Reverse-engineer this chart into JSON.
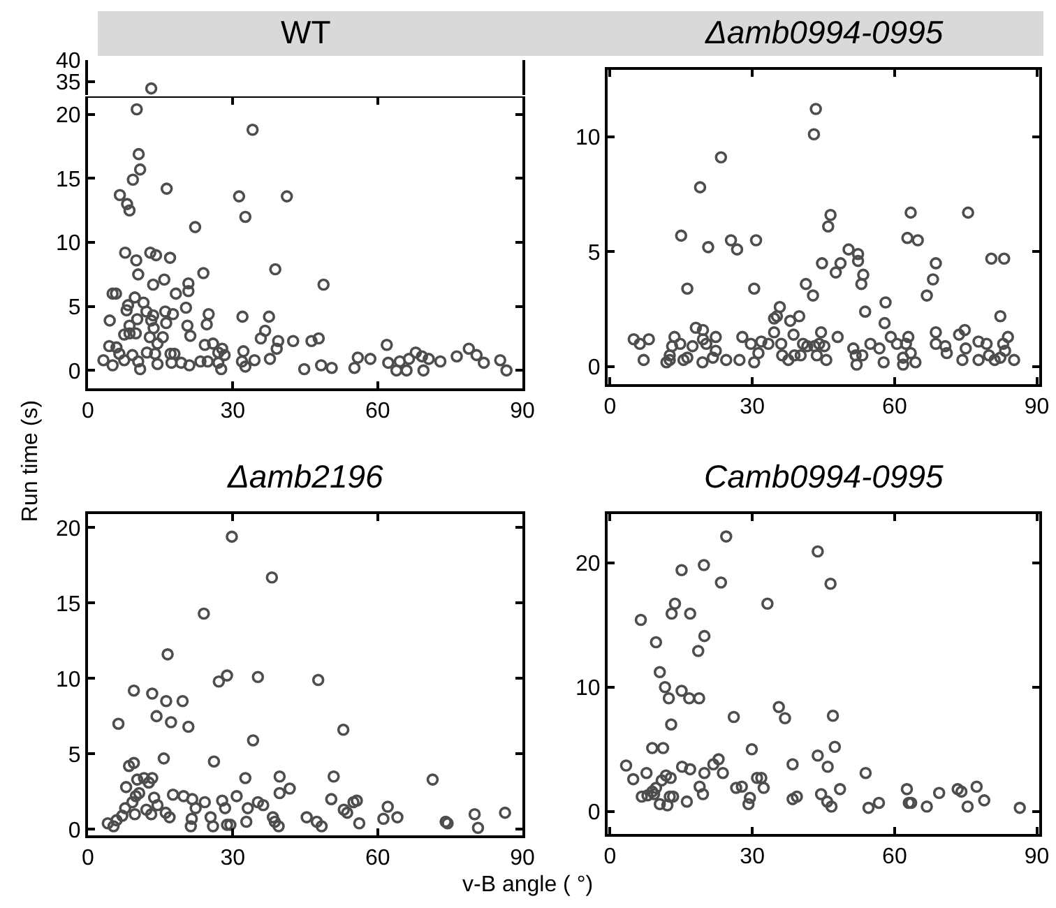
{
  "chart_data": [
    {
      "type": "scatter",
      "title": "WT",
      "marker": "circle",
      "tick_labels": "y",
      "xlim": [
        0,
        90
      ],
      "ylim": [
        32,
        40
      ],
      "yticks": [
        35,
        40
      ],
      "series": [
        {
          "color": "#4d4d4d",
          "x": [
            13.1
          ],
          "values": [
            33.5
          ]
        }
      ]
    },
    {
      "type": "scatter",
      "ylabel": "Run time (s)",
      "marker": "circle",
      "xlim": [
        0,
        90
      ],
      "xticks": [
        0,
        30,
        60,
        90
      ],
      "ylim": [
        -1.4,
        21.3
      ],
      "yticks": [
        0,
        5,
        10,
        15,
        20
      ],
      "series": [
        {
          "color": "#4d4d4d",
          "x": [
            10.1,
            10.5,
            10.8,
            9.3,
            6.6,
            8.1,
            8.6,
            16.3,
            31.3,
            32.6,
            34.1,
            41.2,
            22.2,
            7.7,
            10.0,
            12.9,
            14.1,
            17.0,
            10.4,
            13.5,
            15.8,
            18.2,
            20.8,
            20.8,
            23.9,
            38.8,
            48.8,
            5.1,
            5.8,
            4.5,
            8.3,
            8.0,
            9.7,
            11.5,
            20.3,
            13.5,
            16.0,
            17.6,
            16.2,
            25.0,
            24.6,
            20.6,
            21.2,
            32.0,
            37.5,
            36.7,
            35.8,
            39.4,
            42.5,
            46.3,
            47.8,
            24.2,
            25.9,
            27.8,
            28.3,
            27.0,
            24.8,
            27.0,
            27.6,
            32.2,
            31.9,
            32.6,
            34.5,
            37.7,
            39.1,
            44.8,
            48.3,
            50.5,
            55.2,
            55.9,
            58.5,
            61.9,
            62.2,
            63.9,
            64.6,
            66.0,
            66.5,
            67.9,
            69.5,
            69.2,
            70.6,
            73.0,
            76.4,
            78.9,
            80.5,
            82.0,
            85.4,
            86.7,
            3.2,
            4.4,
            5.9,
            6.5,
            5.1,
            7.5,
            8.6,
            9.9,
            8.6,
            10.2,
            7.5,
            9.2,
            10.4,
            10.8,
            12.2,
            12.8,
            13.6,
            14.4,
            13.9,
            14.4,
            15.5,
            17.1,
            17.9,
            17.3,
            19.3,
            21.0,
            23.3,
            13.1,
            12.1
          ],
          "values": [
            20.4,
            16.9,
            15.7,
            14.9,
            13.7,
            13.0,
            12.5,
            14.2,
            13.6,
            12.0,
            18.8,
            13.6,
            11.2,
            9.2,
            8.6,
            9.2,
            9.0,
            8.8,
            7.5,
            6.7,
            7.1,
            6.0,
            6.8,
            6.2,
            7.6,
            7.9,
            6.7,
            6.0,
            6.0,
            3.9,
            5.1,
            4.7,
            5.7,
            5.3,
            4.9,
            4.3,
            4.6,
            4.4,
            3.7,
            4.4,
            3.6,
            3.5,
            2.7,
            4.2,
            4.2,
            3.1,
            2.5,
            2.3,
            2.3,
            2.3,
            2.5,
            2.0,
            2.1,
            1.7,
            1.2,
            1.4,
            0.7,
            0.6,
            0.1,
            1.5,
            0.7,
            0.3,
            0.8,
            0.9,
            1.7,
            0.1,
            0.4,
            0.2,
            0.2,
            1.0,
            0.9,
            2.0,
            0.6,
            0,
            0.7,
            0,
            0.9,
            1.4,
            0,
            1.1,
            0.9,
            0.7,
            1.1,
            1.7,
            1.2,
            0.6,
            0.8,
            0,
            0.8,
            1.9,
            1.8,
            1.3,
            0.4,
            2.8,
            2.9,
            2.9,
            3.5,
            4.0,
            0.8,
            1.2,
            0.7,
            0.1,
            1.4,
            2.6,
            3.3,
            2.1,
            1.3,
            0.5,
            2.6,
            1.3,
            1.3,
            0.6,
            0.6,
            0.4,
            0.7,
            3.9,
            4.6
          ]
        }
      ]
    },
    {
      "type": "scatter",
      "title": "Δamb0994-0995",
      "marker": "circle",
      "xlim": [
        -0.5,
        90.5
      ],
      "xticks": [
        0,
        30,
        60,
        90
      ],
      "ylim": [
        -0.75,
        12.9
      ],
      "yticks": [
        0,
        5,
        10
      ],
      "series": [
        {
          "color": "#4d4d4d",
          "x": [
            5.0,
            6.3,
            7.1,
            8.2,
            11.9,
            12.6,
            13.1,
            13.6,
            14.8,
            12.6,
            15.0,
            16.3,
            15.5,
            16.3,
            17.4,
            18.1,
            19.0,
            19.6,
            19.6,
            19.5,
            20.7,
            20.3,
            21.7,
            22.3,
            22.3,
            23.4,
            24.5,
            25.5,
            26.8,
            27.3,
            27.9,
            29.7,
            30.4,
            30.8,
            30.4,
            31.3,
            31.9,
            33.4,
            34.6,
            34.6,
            35.2,
            35.8,
            36.1,
            36.3,
            37.6,
            38.0,
            38.7,
            38.9,
            39.9,
            40.2,
            41.3,
            40.7,
            41.6,
            42.8,
            43.0,
            43.4,
            43.1,
            43.6,
            44.1,
            44.5,
            44.7,
            45.2,
            45.6,
            46.0,
            46.5,
            47.6,
            48.0,
            48.6,
            50.3,
            51.3,
            52.0,
            51.8,
            52.3,
            52.3,
            53.4,
            53.0,
            53.8,
            53.2,
            54.9,
            56.8,
            57.7,
            57.9,
            58.1,
            59.2,
            60.5,
            61.8,
            61.8,
            62.4,
            62.9,
            62.7,
            63.4,
            63.4,
            64.4,
            64.9,
            66.8,
            68.1,
            68.7,
            68.7,
            68.7,
            70.7,
            71.0,
            73.6,
            74.8,
            74.3,
            75.0,
            75.5,
            77.7,
            77.7,
            79.4,
            79.9,
            80.4,
            81.1,
            82.3,
            83.1,
            82.3,
            82.9,
            83.3,
            83.9,
            85.2
          ],
          "values": [
            1.2,
            1.0,
            0.3,
            1.2,
            0.2,
            0.5,
            0.9,
            1.3,
            1.0,
            0.3,
            5.7,
            3.4,
            0.3,
            0.4,
            0.9,
            1.7,
            7.8,
            1.6,
            1.2,
            0.2,
            5.2,
            1.0,
            0.4,
            0.7,
            1.3,
            9.1,
            0.3,
            5.5,
            5.1,
            0.3,
            1.3,
            1.0,
            3.4,
            5.5,
            0.2,
            0.6,
            1.1,
            1.0,
            1.5,
            2.1,
            2.2,
            2.6,
            1.0,
            0.5,
            0.3,
            2.0,
            1.4,
            0.5,
            2.2,
            0.5,
            3.6,
            1.0,
            0.9,
            3.1,
            10.1,
            11.2,
            0.9,
            0.5,
            1.0,
            1.5,
            4.5,
            0.9,
            0.3,
            6.1,
            6.6,
            4.1,
            1.3,
            4.5,
            5.1,
            0.8,
            0.1,
            0.5,
            4.9,
            4.6,
            4.0,
            3.6,
            2.4,
            0.5,
            1.0,
            0.8,
            0.2,
            1.9,
            2.8,
            1.3,
            1.0,
            0.4,
            0.1,
            1.0,
            1.3,
            5.6,
            6.7,
            0.6,
            0.2,
            5.5,
            3.1,
            3.8,
            4.5,
            1.5,
            1.0,
            0.9,
            0.6,
            1.4,
            1.6,
            0.3,
            0.8,
            6.7,
            1.1,
            0.3,
            1.0,
            0.5,
            4.7,
            0.3,
            0.4,
            4.7,
            2.2,
            1.0,
            0.7,
            1.3,
            0.3
          ]
        }
      ]
    },
    {
      "type": "scatter",
      "title": "Δamb2196",
      "xlabel": "v-B angle ( °)",
      "marker": "circle",
      "xlim": [
        0,
        90
      ],
      "xticks": [
        0,
        30,
        60,
        90
      ],
      "ylim": [
        -0.4,
        20.9
      ],
      "yticks": [
        0,
        5,
        10,
        15,
        20
      ],
      "series": [
        {
          "color": "#4d4d4d",
          "x": [
            4.1,
            5.3,
            5.9,
            6.3,
            7.1,
            7.7,
            7.9,
            8.5,
            9.5,
            9.5,
            9.2,
            9.7,
            9.9,
            10.2,
            10.6,
            11.6,
            12.1,
            12.6,
            13.1,
            13.3,
            13.3,
            13.7,
            14.2,
            14.4,
            15.7,
            16.1,
            16.2,
            16.5,
            16.9,
            17.2,
            17.6,
            19.6,
            19.8,
            20.8,
            21.3,
            21.5,
            21.6,
            22.3,
            24.0,
            24.2,
            25.4,
            25.9,
            26.1,
            27.1,
            27.8,
            28.4,
            28.8,
            28.8,
            29.5,
            29.8,
            30.8,
            32.8,
            32.6,
            33.1,
            34.2,
            35.2,
            35.2,
            36.3,
            38.1,
            38.3,
            38.7,
            39.5,
            39.7,
            39.7,
            41.8,
            45.3,
            47.4,
            47.7,
            48.4,
            50.4,
            50.9,
            52.9,
            53.0,
            53.7,
            55.0,
            55.7,
            56.2,
            61.2,
            62.1,
            64.1,
            71.4,
            74.1,
            74.5,
            80.1,
            80.8,
            86.4
          ],
          "values": [
            0.4,
            0.2,
            0.6,
            7.0,
            0.9,
            1.4,
            2.8,
            4.2,
            4.4,
            9.2,
            1.8,
            1.0,
            2.2,
            3.3,
            2.4,
            3.4,
            1.3,
            3.1,
            1.0,
            9.0,
            3.4,
            2.1,
            7.5,
            1.6,
            4.7,
            1.1,
            8.5,
            11.6,
            0.8,
            7.1,
            2.3,
            8.5,
            2.2,
            6.8,
            0.2,
            0.7,
            2.0,
            1.4,
            14.3,
            1.8,
            0.8,
            0.2,
            4.5,
            9.8,
            1.9,
            1.4,
            10.2,
            0.3,
            0.3,
            19.4,
            2.2,
            0.5,
            3.4,
            1.4,
            5.9,
            10.1,
            1.8,
            1.6,
            16.7,
            0.8,
            0.5,
            0.2,
            2.4,
            3.5,
            2.7,
            0.8,
            0.5,
            9.9,
            0.2,
            2.0,
            3.5,
            6.6,
            1.3,
            1.1,
            1.8,
            1.9,
            0.4,
            0.7,
            1.5,
            0.8,
            3.3,
            0.5,
            0.4,
            1.0,
            0.1,
            1.1
          ]
        }
      ]
    },
    {
      "type": "scatter",
      "title": "Camb0994-0995",
      "marker": "circle",
      "xlim": [
        -0.5,
        90.5
      ],
      "xticks": [
        0,
        30,
        60,
        90
      ],
      "ylim": [
        -1.8,
        23.9
      ],
      "yticks": [
        0,
        10,
        20
      ],
      "series": [
        {
          "color": "#4d4d4d",
          "x": [
            3.4,
            4.9,
            6.5,
            6.7,
            7.7,
            7.9,
            8.9,
            8.9,
            9.3,
            9.7,
            9.7,
            10.5,
            10.5,
            10.9,
            11.2,
            11.6,
            11.8,
            12.1,
            12.4,
            12.9,
            12.8,
            13.0,
            12.6,
            13.3,
            13.7,
            15.1,
            15.1,
            15.2,
            16.2,
            16.7,
            16.9,
            16.9,
            18.6,
            18.8,
            18.9,
            19.6,
            19.8,
            19.9,
            19.9,
            21.8,
            22.9,
            23.4,
            23.8,
            24.5,
            26.1,
            26.6,
            27.8,
            29.2,
            29.5,
            29.9,
            31.0,
            31.9,
            32.4,
            33.2,
            35.6,
            36.9,
            38.5,
            38.5,
            39.4,
            43.8,
            43.8,
            44.5,
            45.9,
            45.8,
            46.5,
            46.7,
            47.0,
            47.4,
            48.5,
            53.9,
            54.5,
            56.7,
            62.6,
            63.0,
            63.5,
            66.8,
            69.4,
            73.3,
            74.1,
            75.4,
            77.3,
            78.9,
            86.4
          ],
          "values": [
            3.7,
            2.6,
            15.4,
            1.2,
            3.1,
            1.3,
            5.1,
            1.6,
            1.4,
            13.6,
            1.9,
            11.2,
            0.6,
            2.5,
            5.1,
            10.0,
            2.9,
            0.5,
            9.1,
            7.0,
            2.7,
            15.9,
            1.2,
            1.2,
            16.7,
            19.4,
            9.7,
            3.6,
            0.8,
            9.1,
            15.9,
            3.4,
            12.9,
            9.1,
            2.0,
            1.4,
            19.8,
            14.1,
            3.1,
            3.8,
            4.2,
            18.4,
            3.1,
            22.1,
            7.6,
            1.9,
            2.0,
            0.6,
            1.1,
            5.0,
            2.7,
            2.7,
            1.9,
            16.7,
            8.4,
            7.5,
            3.8,
            1.0,
            1.2,
            20.9,
            4.5,
            1.4,
            3.6,
            0.8,
            18.3,
            0.4,
            7.7,
            5.2,
            1.8,
            3.1,
            0.3,
            0.7,
            1.8,
            0.7,
            0.7,
            0.4,
            1.5,
            1.8,
            1.6,
            0.4,
            2.0,
            0.9,
            0.3
          ]
        }
      ]
    }
  ]
}
